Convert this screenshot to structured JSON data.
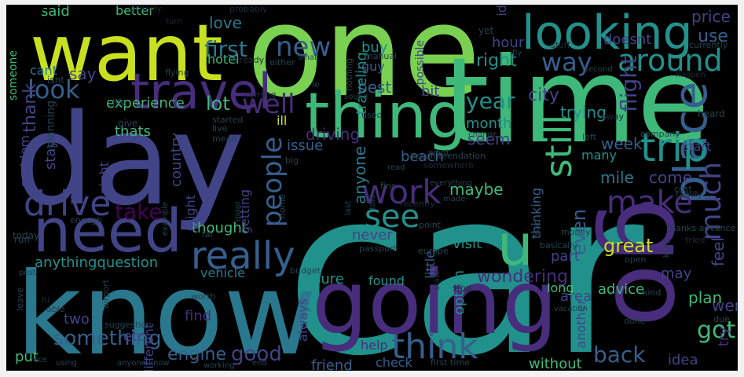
{
  "palette": {
    "yellow": "#c8e020",
    "lime": "#7ad151",
    "green": "#3fb97a",
    "teal": "#21918c",
    "tealblue": "#2a788e",
    "blue": "#355f8d",
    "indigo": "#414487",
    "purple": "#472d7b",
    "darkpurple": "#440154",
    "dim": "#24434f",
    "faint": "#1d2b3a"
  },
  "words": [
    {
      "text": "car",
      "color": "teal"
    },
    {
      "text": "one",
      "color": "lime"
    },
    {
      "text": "day",
      "color": "indigo"
    },
    {
      "text": "time",
      "color": "green"
    },
    {
      "text": "know",
      "color": "tealblue"
    },
    {
      "text": "want",
      "color": "yellow"
    },
    {
      "text": "going",
      "color": "purple"
    },
    {
      "text": "go",
      "color": "purple"
    },
    {
      "text": "need",
      "color": "indigo"
    },
    {
      "text": "thing",
      "color": "green"
    },
    {
      "text": "looking",
      "color": "teal"
    },
    {
      "text": "travel",
      "color": "purple"
    },
    {
      "text": "place",
      "color": "blue"
    },
    {
      "text": "u",
      "color": "green"
    },
    {
      "text": "around",
      "color": "teal"
    },
    {
      "text": "really",
      "color": "blue"
    },
    {
      "text": "trip",
      "color": "teal"
    },
    {
      "text": "work",
      "color": "purple"
    },
    {
      "text": "drive",
      "color": "indigo"
    },
    {
      "text": "see",
      "color": "teal"
    },
    {
      "text": "make",
      "color": "purple"
    },
    {
      "text": "think",
      "color": "blue"
    },
    {
      "text": "people",
      "color": "blue"
    },
    {
      "text": "still",
      "color": "green"
    },
    {
      "text": "much",
      "color": "indigo"
    },
    {
      "text": "way",
      "color": "blue"
    },
    {
      "text": "new",
      "color": "blue"
    },
    {
      "text": "well",
      "color": "purple"
    },
    {
      "text": "first",
      "color": "tealblue"
    },
    {
      "text": "look",
      "color": "blue"
    },
    {
      "text": "year",
      "color": "teal"
    },
    {
      "text": "take",
      "color": "darkpurple"
    },
    {
      "text": "flight",
      "color": "indigo"
    },
    {
      "text": "something",
      "color": "blue"
    },
    {
      "text": "anythingquestion",
      "color": "teal"
    },
    {
      "text": "back",
      "color": "blue"
    },
    {
      "text": "even",
      "color": "blue"
    },
    {
      "text": "got",
      "color": "green"
    },
    {
      "text": "good",
      "color": "indigo"
    },
    {
      "text": "engine",
      "color": "blue"
    },
    {
      "text": "lot",
      "color": "green"
    },
    {
      "text": "city",
      "color": "indigo"
    },
    {
      "text": "country",
      "color": "indigo"
    },
    {
      "text": "feel",
      "color": "indigo"
    },
    {
      "text": "right",
      "color": "teal"
    },
    {
      "text": "thank",
      "color": "indigo"
    },
    {
      "text": "experience",
      "color": "green"
    },
    {
      "text": "love",
      "color": "tealblue"
    },
    {
      "text": "great",
      "color": "yellow"
    },
    {
      "text": "thought",
      "color": "green"
    },
    {
      "text": "trying",
      "color": "teal"
    },
    {
      "text": "month",
      "color": "teal"
    },
    {
      "text": "driving",
      "color": "purple"
    },
    {
      "text": "issue",
      "color": "blue"
    },
    {
      "text": "seem",
      "color": "indigo"
    },
    {
      "text": "week",
      "color": "blue"
    },
    {
      "text": "maybe",
      "color": "green"
    },
    {
      "text": "anyone",
      "color": "tealblue"
    },
    {
      "text": "getting",
      "color": "indigo"
    },
    {
      "text": "never",
      "color": "indigo"
    },
    {
      "text": "part",
      "color": "indigo"
    },
    {
      "text": "visit",
      "color": "teal"
    },
    {
      "text": "wondering",
      "color": "purple"
    },
    {
      "text": "plan",
      "color": "green"
    },
    {
      "text": "advice",
      "color": "green"
    },
    {
      "text": "idea",
      "color": "indigo"
    },
    {
      "text": "mile",
      "color": "tealblue"
    },
    {
      "text": "come",
      "color": "indigo"
    },
    {
      "text": "went",
      "color": "indigo"
    },
    {
      "text": "say",
      "color": "indigo"
    },
    {
      "text": "cant",
      "color": "tealblue"
    },
    {
      "text": "said",
      "color": "green"
    },
    {
      "text": "better",
      "color": "green"
    },
    {
      "text": "buy",
      "color": "teal"
    },
    {
      "text": "guy",
      "color": "blue"
    },
    {
      "text": "best",
      "color": "blue"
    },
    {
      "text": "bit",
      "color": "indigo"
    },
    {
      "text": "use",
      "color": "blue"
    },
    {
      "text": "price",
      "color": "indigo"
    },
    {
      "text": "hour",
      "color": "indigo"
    },
    {
      "text": "doesnt",
      "color": "indigo"
    },
    {
      "text": "traveling",
      "color": "teal"
    },
    {
      "text": "possible",
      "color": "indigo"
    },
    {
      "text": "hotel",
      "color": "green"
    },
    {
      "text": "id",
      "color": "indigo"
    },
    {
      "text": "thats",
      "color": "green"
    },
    {
      "text": "ill",
      "color": "yellow"
    },
    {
      "text": "night",
      "color": "indigo"
    },
    {
      "text": "might",
      "color": "indigo"
    },
    {
      "text": "beach",
      "color": "blue"
    },
    {
      "text": "thinking",
      "color": "blue"
    },
    {
      "text": "many",
      "color": "teal"
    },
    {
      "text": "start",
      "color": "indigo"
    },
    {
      "text": "sure",
      "color": "teal"
    },
    {
      "text": "found",
      "color": "teal"
    },
    {
      "text": "little",
      "color": "blue"
    },
    {
      "text": "option",
      "color": "teal"
    },
    {
      "text": "always",
      "color": "indigo"
    },
    {
      "text": "help",
      "color": "purple"
    },
    {
      "text": "check",
      "color": "blue"
    },
    {
      "text": "friend",
      "color": "blue"
    },
    {
      "text": "without",
      "color": "green"
    },
    {
      "text": "area",
      "color": "indigo"
    },
    {
      "text": "may",
      "color": "indigo"
    },
    {
      "text": "try",
      "color": "purple"
    },
    {
      "text": "long",
      "color": "green"
    },
    {
      "text": "another",
      "color": "indigo"
    },
    {
      "text": "vehicle",
      "color": "tealblue"
    },
    {
      "text": "find",
      "color": "purple"
    },
    {
      "text": "different",
      "color": "indigo"
    },
    {
      "text": "two",
      "color": "indigo"
    },
    {
      "text": "etc",
      "color": "indigo"
    },
    {
      "text": "put",
      "color": "green"
    },
    {
      "text": "stay",
      "color": "indigo"
    },
    {
      "text": "problem",
      "color": "indigo"
    },
    {
      "text": "planning",
      "color": "dim"
    },
    {
      "text": "someone",
      "color": "green"
    },
    {
      "text": "isnt",
      "color": "dim"
    },
    {
      "text": "life",
      "color": "dim"
    },
    {
      "text": "give",
      "color": "dim"
    },
    {
      "text": "today",
      "color": "dim"
    },
    {
      "text": "run",
      "color": "dim"
    },
    {
      "text": "actually",
      "color": "faint"
    },
    {
      "text": "probably",
      "color": "faint"
    },
    {
      "text": "turn",
      "color": "faint"
    },
    {
      "text": "already",
      "color": "faint"
    },
    {
      "text": "flying",
      "color": "dim"
    },
    {
      "text": "started",
      "color": "dim"
    },
    {
      "text": "live",
      "color": "dim"
    },
    {
      "text": "mean",
      "color": "dim"
    },
    {
      "text": "coming",
      "color": "faint"
    },
    {
      "text": "manual",
      "color": "dim"
    },
    {
      "text": "either",
      "color": "dim"
    },
    {
      "text": "nothing",
      "color": "dim"
    },
    {
      "text": "le",
      "color": "dim"
    },
    {
      "text": "sound",
      "color": "dim"
    },
    {
      "text": "used",
      "color": "dim"
    },
    {
      "text": "yet",
      "color": "dim"
    },
    {
      "text": "fly",
      "color": "dim"
    },
    {
      "text": "stuff",
      "color": "faint"
    },
    {
      "text": "currently",
      "color": "dim"
    },
    {
      "text": "second",
      "color": "dim"
    },
    {
      "text": "happen",
      "color": "faint"
    },
    {
      "text": "away",
      "color": "faint"
    },
    {
      "text": "heard",
      "color": "dim"
    },
    {
      "text": "change",
      "color": "dim"
    },
    {
      "text": "left",
      "color": "dim"
    },
    {
      "text": "company",
      "color": "dim"
    },
    {
      "text": "wont",
      "color": "dim"
    },
    {
      "text": "recommendation",
      "color": "dim"
    },
    {
      "text": "somewhere",
      "color": "faint"
    },
    {
      "text": "big",
      "color": "dim"
    },
    {
      "text": "read",
      "color": "dim"
    },
    {
      "text": "fine",
      "color": "dim"
    },
    {
      "text": "everything",
      "color": "dim"
    },
    {
      "text": "made",
      "color": "dim"
    },
    {
      "text": "home",
      "color": "dim"
    },
    {
      "text": "didnt",
      "color": "dim"
    },
    {
      "text": "last",
      "color": "dim"
    },
    {
      "text": "told",
      "color": "dim"
    },
    {
      "text": "recently",
      "color": "faint"
    },
    {
      "text": "cost",
      "color": "dim"
    },
    {
      "text": "family",
      "color": "dim"
    },
    {
      "text": "example",
      "color": "dim"
    },
    {
      "text": "enough",
      "color": "dim"
    },
    {
      "text": "far",
      "color": "dim"
    },
    {
      "text": "point",
      "color": "dim"
    },
    {
      "text": "passport",
      "color": "dim"
    },
    {
      "text": "europe",
      "color": "dim"
    },
    {
      "text": "road",
      "color": "dim"
    },
    {
      "text": "basically",
      "color": "dim"
    },
    {
      "text": "money",
      "color": "dim"
    },
    {
      "text": "thanks advance",
      "color": "dim"
    },
    {
      "text": "keep",
      "color": "dim"
    },
    {
      "text": "tried",
      "color": "faint"
    },
    {
      "text": "open",
      "color": "dim"
    },
    {
      "text": "budget",
      "color": "dim"
    },
    {
      "text": "post",
      "color": "dim"
    },
    {
      "text": "hi",
      "color": "faint"
    },
    {
      "text": "able",
      "color": "dim"
    },
    {
      "text": "airport",
      "color": "dim"
    },
    {
      "text": "state",
      "color": "faint"
    },
    {
      "text": "stop",
      "color": "faint"
    },
    {
      "text": "worth",
      "color": "dim"
    },
    {
      "text": "kind",
      "color": "dim"
    },
    {
      "text": "leave",
      "color": "dim"
    },
    {
      "text": "suggestion",
      "color": "dim"
    },
    {
      "text": "done",
      "color": "dim"
    },
    {
      "text": "due",
      "color": "dim"
    },
    {
      "text": "nice",
      "color": "dim"
    },
    {
      "text": "using",
      "color": "dim"
    },
    {
      "text": "anyone know",
      "color": "dim"
    },
    {
      "text": "working",
      "color": "dim"
    },
    {
      "text": "end",
      "color": "dim"
    },
    {
      "text": "first time",
      "color": "dim"
    },
    {
      "text": "vacation",
      "color": "dim"
    },
    {
      "text": "small",
      "color": "dim"
    },
    {
      "text": "pretty",
      "color": "faint"
    }
  ]
}
